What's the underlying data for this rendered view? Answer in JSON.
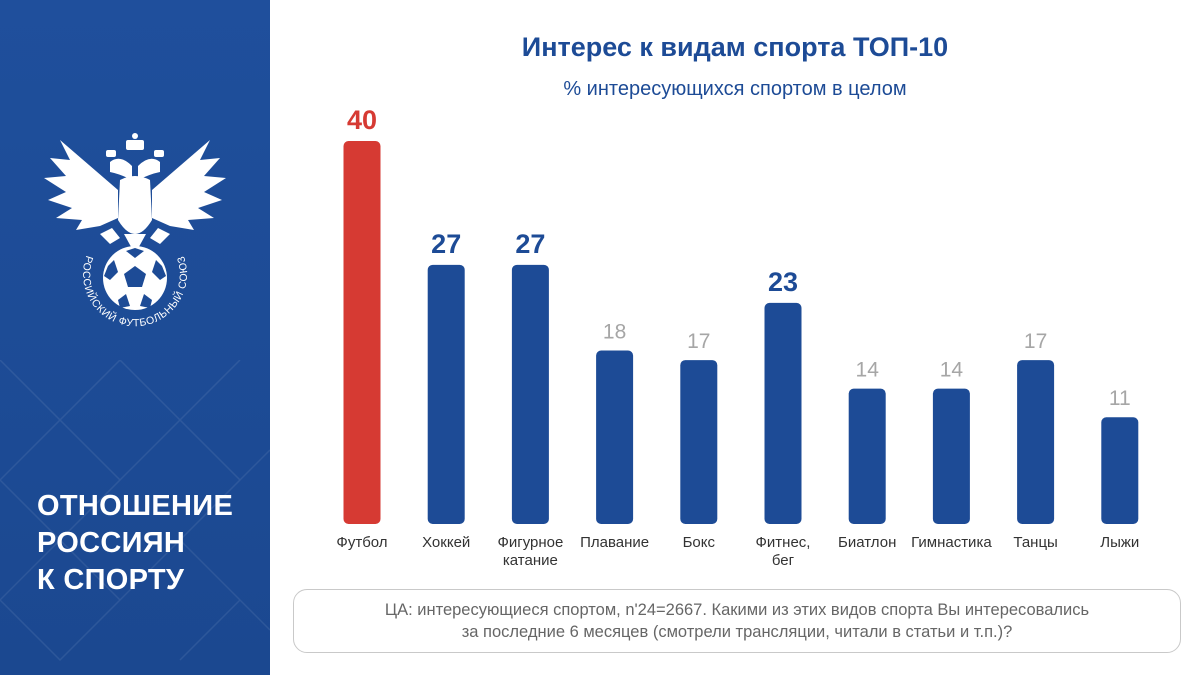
{
  "sidebar": {
    "logo_text": "РОССИЙСКИЙ ФУТБОЛЬНЫЙ СОЮЗ",
    "headline": [
      "ОТНОШЕНИЕ",
      "РОССИЯН",
      "К СПОРТУ"
    ],
    "background_color": "#1d4b96"
  },
  "footnote": {
    "line1": "ЦА: интересующиеся спортом, n'24=2667. Какими из этих видов спорта Вы интересовались",
    "line2": "за последние 6 месяцев (смотрели трансляции, читали в статьи и т.п.)?"
  },
  "chart_data": {
    "type": "bar",
    "title": "Интерес к видам спорта ТОП-10",
    "subtitle": "% интересующихся спортом в целом",
    "categories": [
      [
        "Футбол"
      ],
      [
        "Хоккей"
      ],
      [
        "Фигурное",
        "катание"
      ],
      [
        "Плавание"
      ],
      [
        "Бокс"
      ],
      [
        "Фитнес,",
        "бег"
      ],
      [
        "Биатлон"
      ],
      [
        "Гимнастика"
      ],
      [
        "Танцы"
      ],
      [
        "Лыжи"
      ]
    ],
    "values": [
      40,
      27,
      27,
      18,
      17,
      23,
      14,
      14,
      17,
      11
    ],
    "ylim": [
      0,
      40
    ],
    "grid": false,
    "highlight_colors": {
      "primary": "#d63a33",
      "bar": "#1d4b96",
      "muted_label": "#a6a6a6"
    },
    "bar_colors": [
      "#d63a33",
      "#1d4b96",
      "#1d4b96",
      "#1d4b96",
      "#1d4b96",
      "#1d4b96",
      "#1d4b96",
      "#1d4b96",
      "#1d4b96",
      "#1d4b96"
    ],
    "emphasized_labels": [
      true,
      true,
      true,
      false,
      false,
      true,
      false,
      false,
      false,
      false
    ]
  }
}
